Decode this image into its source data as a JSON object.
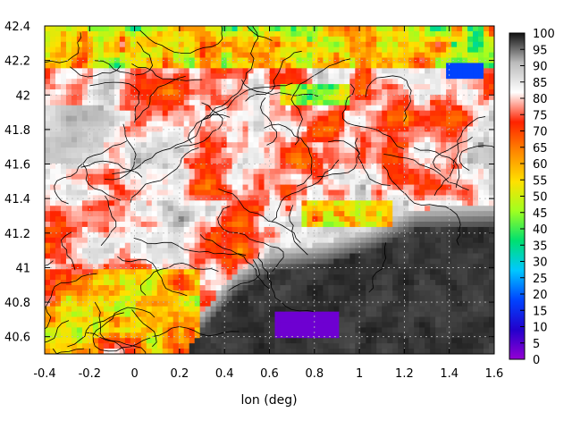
{
  "chart_data": {
    "type": "heatmap",
    "title": "",
    "xlabel": "lon (deg)",
    "ylabel": "",
    "xlim": [
      -0.4,
      1.6
    ],
    "ylim": [
      40.5,
      42.4
    ],
    "x_ticks": [
      "-0.4",
      "-0.2",
      "0",
      "0.2",
      "0.4",
      "0.6",
      "0.8",
      "1",
      "1.2",
      "1.4",
      "1.6"
    ],
    "y_ticks": [
      "42.4",
      "42.2",
      "42",
      "41.8",
      "41.6",
      "41.4",
      "41.2",
      "41",
      "40.8",
      "40.6"
    ],
    "colorbar": {
      "range": [
        0,
        100
      ],
      "ticks": [
        "100",
        "95",
        "90",
        "85",
        "80",
        "75",
        "70",
        "65",
        "60",
        "55",
        "50",
        "45",
        "40",
        "35",
        "30",
        "25",
        "20",
        "15",
        "10",
        "5",
        "0"
      ],
      "colormap": [
        "#9400d3",
        "#2200cc",
        "#0044ff",
        "#00c8ff",
        "#00e070",
        "#a0ff20",
        "#ffe000",
        "#ff8800",
        "#ff2200",
        "#ffffff",
        "#bbbbbb",
        "#111111"
      ]
    },
    "grid": true,
    "land_color": "#ff4422",
    "sea_color": "#111111",
    "contours": true
  }
}
